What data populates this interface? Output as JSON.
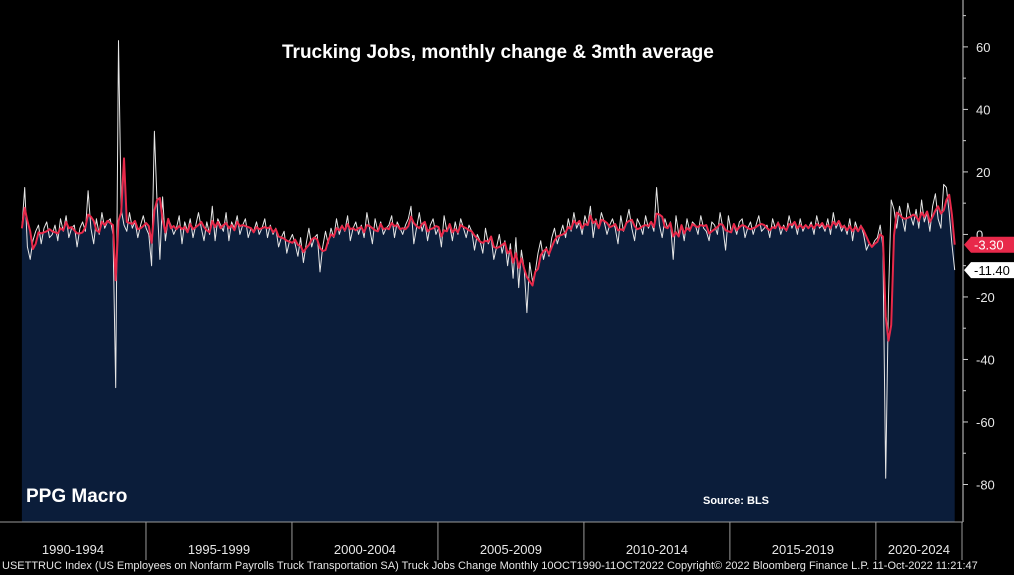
{
  "chart_data": {
    "type": "line",
    "title": "Trucking Jobs, monthly change & 3mth average",
    "brand_label": "PPG Macro",
    "source_label": "Source: BLS",
    "footer_text": "USETTRUC Index (US Employees on Nonfarm Payrolls Truck Transportation SA) Truck Jobs Change  Monthly 10OCT1990-11OCT2022 Copyright© 2022 Bloomberg Finance L.P.  11-Oct-2022 11:21:47",
    "x_start_year": 1990.75,
    "x_end_year": 2022.7,
    "xlim": [
      1990.0,
      2022.95
    ],
    "ylim": [
      -92,
      75
    ],
    "y_ticks": [
      60,
      40,
      20,
      0,
      -20,
      -40,
      -60,
      -80
    ],
    "y_tick_labels": [
      "60",
      "40",
      "20",
      "0",
      "-20",
      "-40",
      "-60",
      "-80"
    ],
    "x_tick_labels": [
      "1990-1994",
      "1995-1999",
      "2000-2004",
      "2005-2009",
      "2010-2014",
      "2015-2019",
      "2020-2024"
    ],
    "x_ticks": [
      1990,
      1995,
      2000,
      2005,
      2010,
      2015,
      2020
    ],
    "colors": {
      "background": "#000000",
      "fill": "#0b1d3a",
      "monthly": "#e6e6e6",
      "average": "#e8294a",
      "average_label_bg": "#e8294a",
      "monthly_label_bg": "#ffffff"
    },
    "series": [
      {
        "name": "Monthly change",
        "color": "#e6e6e6",
        "last_value": -11.4,
        "last_label": "-11.40",
        "values": [
          2,
          15,
          -4,
          -8,
          -2,
          1,
          3,
          -3,
          2,
          4,
          -1,
          0,
          3,
          -2,
          5,
          1,
          6,
          -1,
          2,
          3,
          -4,
          2,
          4,
          1,
          14,
          2,
          -3,
          5,
          0,
          7,
          2,
          4,
          5,
          0,
          -49,
          62,
          8,
          3,
          1,
          7,
          2,
          4,
          -1,
          3,
          6,
          2,
          0,
          -10,
          33,
          10,
          -8,
          12,
          -2,
          5,
          3,
          0,
          2,
          6,
          -3,
          4,
          1,
          5,
          -1,
          3,
          7,
          2,
          -2,
          4,
          0,
          9,
          -2,
          5,
          3,
          1,
          7,
          -2,
          4,
          2,
          6,
          0,
          3,
          5,
          -1,
          2,
          1,
          4,
          0,
          2,
          5,
          -1,
          3,
          0,
          2,
          -4,
          -1,
          1,
          -6,
          -2,
          0,
          -3,
          -7,
          -1,
          -9,
          -3,
          2,
          -4,
          -1,
          0,
          -12,
          -4,
          1,
          -3,
          2,
          -1,
          5,
          0,
          3,
          1,
          6,
          -2,
          2,
          4,
          0,
          3,
          -1,
          7,
          2,
          -3,
          5,
          1,
          4,
          0,
          2,
          3,
          6,
          -1,
          4,
          2,
          0,
          3,
          5,
          9,
          -3,
          2,
          7,
          1,
          4,
          -2,
          3,
          5,
          0,
          2,
          -4,
          6,
          1,
          3,
          -2,
          4,
          0,
          5,
          2,
          -1,
          3,
          1,
          -5,
          0,
          -2,
          -6,
          2,
          -3,
          -1,
          -8,
          -4,
          0,
          -6,
          -2,
          -10,
          -3,
          -14,
          -1,
          -17,
          -5,
          -11,
          -25,
          -9,
          -15,
          -12,
          -6,
          -2,
          -8,
          -4,
          -7,
          -1,
          2,
          -3,
          0,
          3,
          -1,
          5,
          1,
          7,
          2,
          4,
          0,
          6,
          3,
          9,
          -1,
          5,
          2,
          7,
          4,
          0,
          3,
          5,
          2,
          -3,
          6,
          1,
          4,
          8,
          2,
          -2,
          5,
          3,
          0,
          6,
          2,
          4,
          1,
          15,
          3,
          -1,
          5,
          2,
          4,
          -8,
          6,
          0,
          3,
          -2,
          5,
          1,
          4,
          3,
          0,
          6,
          2,
          1,
          -2,
          4,
          3,
          0,
          7,
          2,
          -5,
          6,
          1,
          3,
          0,
          4,
          5,
          -1,
          2,
          4,
          0,
          3,
          6,
          1,
          2,
          3,
          -1,
          5,
          2,
          4,
          0,
          3,
          1,
          6,
          2,
          4,
          0,
          5,
          1,
          3,
          2,
          4,
          0,
          6,
          2,
          3,
          1,
          5,
          0,
          7,
          2,
          4,
          1,
          3,
          0,
          5,
          -2,
          4,
          1,
          3,
          0,
          -5,
          -3,
          -4,
          -2,
          -1,
          3,
          -4,
          -78,
          -20,
          11,
          8,
          2,
          9,
          5,
          1,
          10,
          6,
          3,
          8,
          2,
          11,
          4,
          7,
          1,
          9,
          13,
          5,
          2,
          16,
          15,
          7,
          -3,
          -11.4
        ]
      },
      {
        "name": "3mth average",
        "color": "#e8294a",
        "last_value": -3.3,
        "last_label": "-3.30"
      }
    ]
  }
}
